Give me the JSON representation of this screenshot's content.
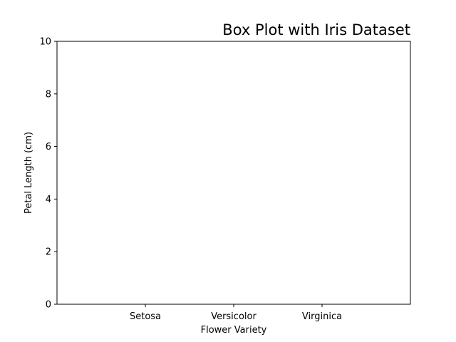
{
  "chart_data": {
    "type": "box",
    "title": "Box Plot with Iris Dataset",
    "xlabel": "Flower Variety",
    "ylabel": "Petal Length (cm)",
    "categories": [
      "Setosa",
      "Versicolor",
      "Virginica"
    ],
    "category_positions": [
      1,
      2,
      3
    ],
    "xlim": [
      0,
      4
    ],
    "ylim": [
      0,
      10
    ],
    "yticks": [
      0,
      2,
      4,
      6,
      8,
      10
    ],
    "series": [],
    "grid": false,
    "legend": "none"
  }
}
